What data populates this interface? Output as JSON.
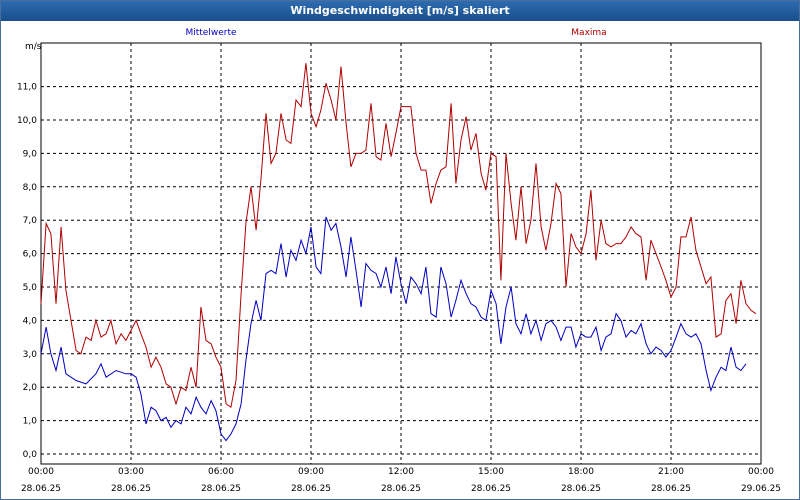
{
  "window": {
    "title": "Windgeschwindigkeit [m/s] skaliert"
  },
  "chart_data": {
    "type": "line",
    "title": "Windgeschwindigkeit [m/s] skaliert",
    "ylabel": "m/s",
    "ylim": [
      0,
      12
    ],
    "yticks": [
      "0,0",
      "1,0",
      "2,0",
      "3,0",
      "4,0",
      "5,0",
      "6,0",
      "7,0",
      "8,0",
      "9,0",
      "10,0",
      "11,0"
    ],
    "xlim_hours": [
      0,
      24
    ],
    "xticks": [
      {
        "time": "00:00",
        "date": "28.06.25"
      },
      {
        "time": "03:00",
        "date": "28.06.25"
      },
      {
        "time": "06:00",
        "date": "28.06.25"
      },
      {
        "time": "09:00",
        "date": "28.06.25"
      },
      {
        "time": "12:00",
        "date": "28.06.25"
      },
      {
        "time": "15:00",
        "date": "28.06.25"
      },
      {
        "time": "18:00",
        "date": "28.06.25"
      },
      {
        "time": "21:00",
        "date": "28.06.25"
      },
      {
        "time": "00:00",
        "date": "29.06.25"
      }
    ],
    "grid": true,
    "series": [
      {
        "name": "Mittelwerte",
        "color": "#0000c0",
        "values": [
          [
            0.0,
            3.0
          ],
          [
            0.17,
            3.8
          ],
          [
            0.33,
            3.0
          ],
          [
            0.5,
            2.5
          ],
          [
            0.67,
            3.2
          ],
          [
            0.83,
            2.4
          ],
          [
            1.17,
            2.2
          ],
          [
            1.5,
            2.1
          ],
          [
            1.83,
            2.4
          ],
          [
            2.0,
            2.7
          ],
          [
            2.17,
            2.3
          ],
          [
            2.5,
            2.5
          ],
          [
            2.83,
            2.4
          ],
          [
            3.0,
            2.4
          ],
          [
            3.17,
            2.3
          ],
          [
            3.33,
            1.8
          ],
          [
            3.5,
            0.9
          ],
          [
            3.67,
            1.4
          ],
          [
            3.83,
            1.3
          ],
          [
            4.0,
            1.0
          ],
          [
            4.17,
            1.1
          ],
          [
            4.33,
            0.8
          ],
          [
            4.5,
            1.0
          ],
          [
            4.67,
            0.9
          ],
          [
            4.83,
            1.4
          ],
          [
            5.0,
            1.2
          ],
          [
            5.17,
            1.7
          ],
          [
            5.33,
            1.4
          ],
          [
            5.5,
            1.2
          ],
          [
            5.67,
            1.6
          ],
          [
            5.83,
            1.3
          ],
          [
            6.0,
            0.6
          ],
          [
            6.17,
            0.4
          ],
          [
            6.33,
            0.6
          ],
          [
            6.5,
            0.9
          ],
          [
            6.67,
            1.5
          ],
          [
            6.83,
            2.8
          ],
          [
            7.0,
            3.9
          ],
          [
            7.17,
            4.6
          ],
          [
            7.33,
            4.0
          ],
          [
            7.5,
            5.4
          ],
          [
            7.67,
            5.5
          ],
          [
            7.83,
            5.4
          ],
          [
            8.0,
            6.3
          ],
          [
            8.17,
            5.3
          ],
          [
            8.33,
            6.1
          ],
          [
            8.5,
            5.8
          ],
          [
            8.67,
            6.4
          ],
          [
            8.83,
            6.0
          ],
          [
            9.0,
            6.8
          ],
          [
            9.17,
            5.6
          ],
          [
            9.33,
            5.4
          ],
          [
            9.5,
            7.1
          ],
          [
            9.67,
            6.7
          ],
          [
            9.83,
            6.9
          ],
          [
            10.0,
            6.2
          ],
          [
            10.17,
            5.3
          ],
          [
            10.33,
            6.5
          ],
          [
            10.5,
            5.5
          ],
          [
            10.67,
            4.4
          ],
          [
            10.83,
            5.7
          ],
          [
            11.0,
            5.5
          ],
          [
            11.17,
            5.4
          ],
          [
            11.33,
            5.0
          ],
          [
            11.5,
            5.6
          ],
          [
            11.67,
            4.8
          ],
          [
            11.83,
            5.9
          ],
          [
            12.0,
            5.1
          ],
          [
            12.17,
            4.5
          ],
          [
            12.33,
            5.3
          ],
          [
            12.5,
            5.1
          ],
          [
            12.67,
            4.8
          ],
          [
            12.83,
            5.6
          ],
          [
            13.0,
            4.2
          ],
          [
            13.17,
            4.1
          ],
          [
            13.33,
            5.6
          ],
          [
            13.5,
            5.1
          ],
          [
            13.67,
            4.1
          ],
          [
            13.83,
            4.6
          ],
          [
            14.0,
            5.2
          ],
          [
            14.17,
            4.8
          ],
          [
            14.33,
            4.5
          ],
          [
            14.5,
            4.4
          ],
          [
            14.67,
            4.1
          ],
          [
            14.83,
            4.0
          ],
          [
            15.0,
            4.9
          ],
          [
            15.17,
            4.5
          ],
          [
            15.33,
            3.3
          ],
          [
            15.5,
            4.4
          ],
          [
            15.67,
            5.0
          ],
          [
            15.83,
            3.9
          ],
          [
            16.0,
            3.6
          ],
          [
            16.17,
            4.2
          ],
          [
            16.33,
            3.6
          ],
          [
            16.5,
            4.0
          ],
          [
            16.67,
            3.4
          ],
          [
            16.83,
            3.9
          ],
          [
            17.0,
            4.0
          ],
          [
            17.17,
            3.8
          ],
          [
            17.33,
            3.4
          ],
          [
            17.5,
            3.8
          ],
          [
            17.67,
            3.8
          ],
          [
            17.83,
            3.2
          ],
          [
            18.0,
            3.6
          ],
          [
            18.17,
            3.5
          ],
          [
            18.33,
            3.5
          ],
          [
            18.5,
            3.8
          ],
          [
            18.67,
            3.1
          ],
          [
            18.83,
            3.5
          ],
          [
            19.0,
            3.6
          ],
          [
            19.17,
            4.2
          ],
          [
            19.33,
            4.0
          ],
          [
            19.5,
            3.5
          ],
          [
            19.67,
            3.7
          ],
          [
            19.83,
            3.6
          ],
          [
            20.0,
            3.9
          ],
          [
            20.17,
            3.3
          ],
          [
            20.33,
            3.0
          ],
          [
            20.5,
            3.2
          ],
          [
            20.67,
            3.1
          ],
          [
            20.83,
            2.9
          ],
          [
            21.0,
            3.1
          ],
          [
            21.17,
            3.5
          ],
          [
            21.33,
            3.9
          ],
          [
            21.5,
            3.6
          ],
          [
            21.67,
            3.5
          ],
          [
            21.83,
            3.6
          ],
          [
            22.0,
            3.3
          ],
          [
            22.17,
            2.5
          ],
          [
            22.33,
            1.9
          ],
          [
            22.5,
            2.3
          ],
          [
            22.67,
            2.6
          ],
          [
            22.83,
            2.5
          ],
          [
            23.0,
            3.2
          ],
          [
            23.17,
            2.6
          ],
          [
            23.33,
            2.5
          ],
          [
            23.5,
            2.7
          ]
        ]
      },
      {
        "name": "Maxima",
        "color": "#b00000",
        "values": [
          [
            0.0,
            4.5
          ],
          [
            0.17,
            6.9
          ],
          [
            0.33,
            6.6
          ],
          [
            0.5,
            4.5
          ],
          [
            0.67,
            6.8
          ],
          [
            0.83,
            4.9
          ],
          [
            1.0,
            4.0
          ],
          [
            1.17,
            3.1
          ],
          [
            1.33,
            3.0
          ],
          [
            1.5,
            3.5
          ],
          [
            1.67,
            3.4
          ],
          [
            1.83,
            4.0
          ],
          [
            2.0,
            3.5
          ],
          [
            2.17,
            3.6
          ],
          [
            2.33,
            4.0
          ],
          [
            2.5,
            3.3
          ],
          [
            2.67,
            3.6
          ],
          [
            2.83,
            3.4
          ],
          [
            3.0,
            3.7
          ],
          [
            3.17,
            4.0
          ],
          [
            3.33,
            3.6
          ],
          [
            3.5,
            3.2
          ],
          [
            3.67,
            2.6
          ],
          [
            3.83,
            2.9
          ],
          [
            4.0,
            2.6
          ],
          [
            4.17,
            2.1
          ],
          [
            4.33,
            2.0
          ],
          [
            4.5,
            1.5
          ],
          [
            4.67,
            2.0
          ],
          [
            4.83,
            1.9
          ],
          [
            5.0,
            2.6
          ],
          [
            5.17,
            2.0
          ],
          [
            5.33,
            4.4
          ],
          [
            5.5,
            3.4
          ],
          [
            5.67,
            3.3
          ],
          [
            5.83,
            2.9
          ],
          [
            6.0,
            2.6
          ],
          [
            6.17,
            1.5
          ],
          [
            6.33,
            1.4
          ],
          [
            6.5,
            2.2
          ],
          [
            6.67,
            4.8
          ],
          [
            6.83,
            6.9
          ],
          [
            7.0,
            8.0
          ],
          [
            7.17,
            6.7
          ],
          [
            7.33,
            8.2
          ],
          [
            7.5,
            10.2
          ],
          [
            7.67,
            8.7
          ],
          [
            7.83,
            9.0
          ],
          [
            8.0,
            10.2
          ],
          [
            8.17,
            9.4
          ],
          [
            8.33,
            9.3
          ],
          [
            8.5,
            10.6
          ],
          [
            8.67,
            10.4
          ],
          [
            8.83,
            11.7
          ],
          [
            9.0,
            10.2
          ],
          [
            9.17,
            9.8
          ],
          [
            9.33,
            10.3
          ],
          [
            9.5,
            11.1
          ],
          [
            9.67,
            10.6
          ],
          [
            9.83,
            10.0
          ],
          [
            10.0,
            11.6
          ],
          [
            10.17,
            9.9
          ],
          [
            10.33,
            8.6
          ],
          [
            10.5,
            9.0
          ],
          [
            10.67,
            9.0
          ],
          [
            10.83,
            9.1
          ],
          [
            11.0,
            10.5
          ],
          [
            11.17,
            8.9
          ],
          [
            11.33,
            8.8
          ],
          [
            11.5,
            9.9
          ],
          [
            11.67,
            8.9
          ],
          [
            11.83,
            9.6
          ],
          [
            12.0,
            10.4
          ],
          [
            12.17,
            10.4
          ],
          [
            12.33,
            10.4
          ],
          [
            12.5,
            9.0
          ],
          [
            12.67,
            8.5
          ],
          [
            12.83,
            8.5
          ],
          [
            13.0,
            7.5
          ],
          [
            13.17,
            8.1
          ],
          [
            13.33,
            8.5
          ],
          [
            13.5,
            8.6
          ],
          [
            13.67,
            10.5
          ],
          [
            13.83,
            8.1
          ],
          [
            14.0,
            9.4
          ],
          [
            14.17,
            10.1
          ],
          [
            14.33,
            9.1
          ],
          [
            14.5,
            9.6
          ],
          [
            14.67,
            8.4
          ],
          [
            14.83,
            7.9
          ],
          [
            15.0,
            9.0
          ],
          [
            15.17,
            8.9
          ],
          [
            15.33,
            5.2
          ],
          [
            15.5,
            9.0
          ],
          [
            15.67,
            7.5
          ],
          [
            15.83,
            6.4
          ],
          [
            16.0,
            8.0
          ],
          [
            16.17,
            6.3
          ],
          [
            16.33,
            7.0
          ],
          [
            16.5,
            8.7
          ],
          [
            16.67,
            6.8
          ],
          [
            16.83,
            6.1
          ],
          [
            17.0,
            6.9
          ],
          [
            17.17,
            8.1
          ],
          [
            17.33,
            7.8
          ],
          [
            17.5,
            5.0
          ],
          [
            17.67,
            6.6
          ],
          [
            17.83,
            6.2
          ],
          [
            18.0,
            6.0
          ],
          [
            18.17,
            6.6
          ],
          [
            18.33,
            7.9
          ],
          [
            18.5,
            5.8
          ],
          [
            18.67,
            7.0
          ],
          [
            18.83,
            6.3
          ],
          [
            19.0,
            6.2
          ],
          [
            19.17,
            6.3
          ],
          [
            19.33,
            6.3
          ],
          [
            19.5,
            6.5
          ],
          [
            19.67,
            6.8
          ],
          [
            19.83,
            6.6
          ],
          [
            20.0,
            6.5
          ],
          [
            20.17,
            5.2
          ],
          [
            20.33,
            6.4
          ],
          [
            20.5,
            6.0
          ],
          [
            20.67,
            5.6
          ],
          [
            20.83,
            5.2
          ],
          [
            21.0,
            4.7
          ],
          [
            21.17,
            5.0
          ],
          [
            21.33,
            6.5
          ],
          [
            21.5,
            6.5
          ],
          [
            21.67,
            7.1
          ],
          [
            21.83,
            6.1
          ],
          [
            22.0,
            5.6
          ],
          [
            22.17,
            5.1
          ],
          [
            22.33,
            5.3
          ],
          [
            22.5,
            3.5
          ],
          [
            22.67,
            3.6
          ],
          [
            22.83,
            4.6
          ],
          [
            23.0,
            4.8
          ],
          [
            23.17,
            3.9
          ],
          [
            23.33,
            5.2
          ],
          [
            23.5,
            4.5
          ],
          [
            23.67,
            4.3
          ],
          [
            23.83,
            4.2
          ]
        ]
      }
    ]
  }
}
